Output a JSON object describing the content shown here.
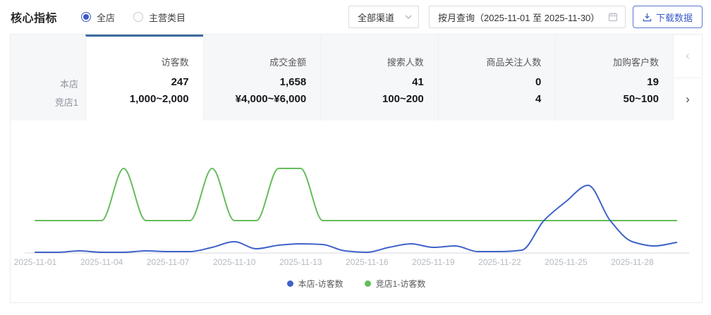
{
  "header": {
    "title": "核心指标",
    "radios": [
      {
        "label": "全店",
        "selected": true
      },
      {
        "label": "主营类目",
        "selected": false
      }
    ],
    "channel_select": {
      "value": "全部渠道",
      "icon": "chevron-down-icon"
    },
    "date_picker": {
      "value": "按月查询（2025-11-01 至 2025-11-30）",
      "icon": "calendar-icon"
    },
    "download_button": {
      "label": "下载数据",
      "icon": "download-icon"
    }
  },
  "metrics_table": {
    "row_labels": [
      "本店",
      "竞店1"
    ],
    "columns": [
      {
        "header": "访客数",
        "values": [
          "247",
          "1,000~2,000"
        ],
        "selected": true
      },
      {
        "header": "成交金额",
        "values": [
          "1,658",
          "¥4,000~¥6,000"
        ],
        "selected": false
      },
      {
        "header": "搜索人数",
        "values": [
          "41",
          "100~200"
        ],
        "selected": false
      },
      {
        "header": "商品关注人数",
        "values": [
          "0",
          "4"
        ],
        "selected": false
      },
      {
        "header": "加购客户数",
        "values": [
          "19",
          "50~100"
        ],
        "selected": false
      }
    ],
    "pager": {
      "prev_label": "‹",
      "next_label": "›"
    }
  },
  "chart_data": {
    "type": "line",
    "x": [
      "2025-11-01",
      "2025-11-02",
      "2025-11-03",
      "2025-11-04",
      "2025-11-05",
      "2025-11-06",
      "2025-11-07",
      "2025-11-08",
      "2025-11-09",
      "2025-11-10",
      "2025-11-11",
      "2025-11-12",
      "2025-11-13",
      "2025-11-14",
      "2025-11-15",
      "2025-11-16",
      "2025-11-17",
      "2025-11-18",
      "2025-11-19",
      "2025-11-20",
      "2025-11-21",
      "2025-11-22",
      "2025-11-23",
      "2025-11-24",
      "2025-11-25",
      "2025-11-26",
      "2025-11-27",
      "2025-11-28",
      "2025-11-29",
      "2025-11-30"
    ],
    "series": [
      {
        "name": "本店-访客数",
        "color": "#3e62c8",
        "values": [
          1,
          1,
          3,
          1,
          1,
          3,
          2,
          2,
          8,
          16,
          6,
          11,
          13,
          12,
          3,
          1,
          8,
          13,
          8,
          10,
          2,
          2,
          4,
          46,
          73,
          96,
          46,
          16,
          10,
          15
        ]
      },
      {
        "name": "竞店1-访客数",
        "color": "#64bc5a",
        "values": [
          46,
          46,
          46,
          46,
          120,
          46,
          46,
          46,
          120,
          46,
          46,
          120,
          120,
          46,
          46,
          46,
          46,
          46,
          46,
          46,
          46,
          46,
          46,
          46,
          46,
          46,
          46,
          46,
          46,
          46
        ]
      }
    ],
    "y_axis": {
      "visible": false,
      "note": "no y-axis rendered in screenshot; values are relative heights (px above baseline) estimated from pixels"
    },
    "x_tick_every": 3,
    "x_tick_labels": [
      "2025-11-01",
      "2025-11-04",
      "2025-11-07",
      "2025-11-10",
      "2025-11-13",
      "2025-11-16",
      "2025-11-19",
      "2025-11-22",
      "2025-11-25",
      "2025-11-28"
    ],
    "legend_position": "bottom",
    "grid": false,
    "title": ""
  },
  "colors": {
    "accent_blue": "#3b5bc9",
    "tab_accent": "#3e6b9e",
    "line_blue": "#3e62c8",
    "line_green": "#64bc5a",
    "axis_line": "#d7dadd",
    "tick_label": "#b4bac2"
  }
}
